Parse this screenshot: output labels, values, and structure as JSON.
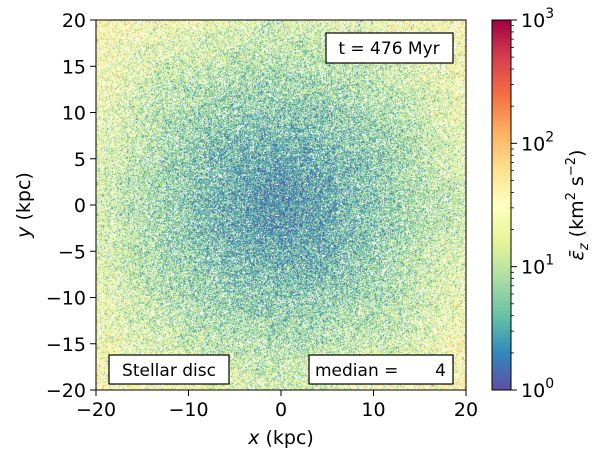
{
  "chart_data": {
    "type": "heatmap",
    "title": "",
    "description_kind": "2D particle map colored by log-scaled quantity",
    "xlabel_var": "x",
    "xlabel_unit": " (kpc)",
    "ylabel_var": "y",
    "ylabel_unit": " (kpc)",
    "xlim": [
      -20,
      20
    ],
    "ylim": [
      -20,
      20
    ],
    "xticks": [
      -20,
      -10,
      0,
      10,
      20
    ],
    "yticks": [
      -20,
      -15,
      -10,
      -5,
      0,
      5,
      10,
      15,
      20
    ],
    "xtick_labels": [
      "−20",
      "−10",
      "0",
      "10",
      "20"
    ],
    "ytick_labels": [
      "−20",
      "−15",
      "−10",
      "−5",
      "0",
      "5",
      "10",
      "15",
      "20"
    ],
    "colorbar": {
      "scale": "log",
      "range": [
        1,
        1000
      ],
      "colormap": "Spectral_r",
      "tick_base": "10",
      "tick_exponents": [
        "0",
        "1",
        "2",
        "3"
      ],
      "label_symbol": "ε̄",
      "label_sub": "z",
      "label_unit_pre": "(km",
      "label_unit_sup1": "2",
      "label_unit_mid": " s",
      "label_unit_sup2": "−2",
      "label_unit_post": ")"
    },
    "annotations": {
      "time": "t = 476 Myr",
      "component": "Stellar disc",
      "median_label": "median =",
      "median_value": "4"
    },
    "field_model": {
      "center_value": 2.5,
      "edge_value": 12,
      "corner_value": 25,
      "median": 4
    }
  },
  "colors": {
    "cmap_low": "#5e4fa2",
    "cmap_mid": "#ffffbf",
    "cmap_high": "#9e0142"
  }
}
